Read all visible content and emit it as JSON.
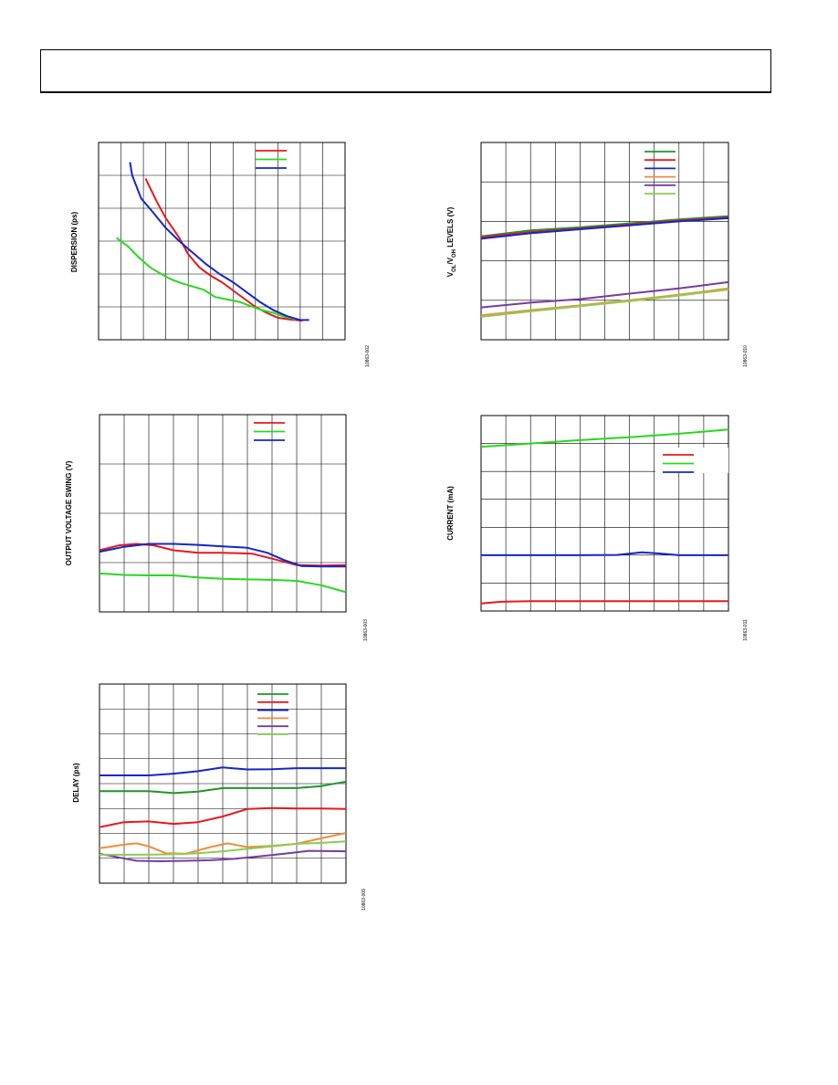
{
  "charts": [
    {
      "id": "dispersion",
      "type": "line",
      "ylabel": "DISPERSION (ps)",
      "figure_id": "10863-002",
      "grid": true,
      "grid_cols": 11,
      "grid_rows": 6,
      "legend": "top-right",
      "colors": [
        "#e8181e",
        "#28d81e",
        "#1426c8"
      ],
      "x_range": [
        0,
        11
      ],
      "y_range": [
        0,
        6
      ],
      "series": [
        {
          "color": "#e8181e",
          "points": [
            [
              2.1,
              4.9
            ],
            [
              2.6,
              4.2
            ],
            [
              3.0,
              3.7
            ],
            [
              3.6,
              3.1
            ],
            [
              4.0,
              2.6
            ],
            [
              4.5,
              2.2
            ],
            [
              5.0,
              1.95
            ],
            [
              5.5,
              1.75
            ],
            [
              6.0,
              1.5
            ],
            [
              6.5,
              1.25
            ],
            [
              7.0,
              1.0
            ],
            [
              7.5,
              0.82
            ],
            [
              8.0,
              0.67
            ],
            [
              8.5,
              0.62
            ],
            [
              9.1,
              0.58
            ]
          ]
        },
        {
          "color": "#28d81e",
          "points": [
            [
              0.8,
              3.1
            ],
            [
              1.3,
              2.85
            ],
            [
              1.8,
              2.5
            ],
            [
              2.3,
              2.2
            ],
            [
              2.8,
              2.0
            ],
            [
              3.2,
              1.85
            ],
            [
              3.7,
              1.72
            ],
            [
              4.2,
              1.62
            ],
            [
              4.7,
              1.52
            ],
            [
              5.2,
              1.3
            ],
            [
              5.8,
              1.22
            ],
            [
              6.3,
              1.15
            ],
            [
              6.8,
              1.02
            ],
            [
              7.3,
              0.9
            ],
            [
              7.8,
              0.82
            ],
            [
              8.3,
              0.7
            ],
            [
              8.8,
              0.62
            ]
          ]
        },
        {
          "color": "#1426c8",
          "points": [
            [
              1.4,
              5.4
            ],
            [
              1.5,
              5.0
            ],
            [
              1.9,
              4.3
            ],
            [
              2.4,
              3.9
            ],
            [
              3.0,
              3.4
            ],
            [
              3.6,
              3.0
            ],
            [
              4.2,
              2.65
            ],
            [
              4.8,
              2.3
            ],
            [
              5.4,
              2.0
            ],
            [
              6.0,
              1.75
            ],
            [
              6.6,
              1.45
            ],
            [
              7.2,
              1.15
            ],
            [
              7.8,
              0.9
            ],
            [
              8.4,
              0.72
            ],
            [
              9.0,
              0.6
            ],
            [
              9.4,
              0.6
            ]
          ]
        }
      ]
    },
    {
      "id": "vol-voh-levels",
      "type": "line",
      "ylabel": "V",
      "ylabel_parts": {
        "sub1": "OL",
        "mid": "/V",
        "sub2": "OH",
        "tail": " LEVELS (V)"
      },
      "figure_id": "10863-010",
      "grid": true,
      "grid_cols": 10,
      "grid_rows": 5,
      "legend": "top-right",
      "colors": [
        "#1e9628",
        "#e8181e",
        "#1426c8",
        "#f08c3c",
        "#783ca0",
        "#8ccc50"
      ],
      "x_range": [
        0,
        10
      ],
      "y_range": [
        0,
        5
      ],
      "series": [
        {
          "color": "#1e9628",
          "points": [
            [
              0,
              2.62
            ],
            [
              2,
              2.77
            ],
            [
              4,
              2.85
            ],
            [
              6,
              2.95
            ],
            [
              8,
              3.05
            ],
            [
              10,
              3.13
            ]
          ]
        },
        {
          "color": "#e8181e",
          "points": [
            [
              0,
              2.6
            ],
            [
              2,
              2.73
            ],
            [
              4,
              2.82
            ],
            [
              6,
              2.92
            ],
            [
              8,
              3.02
            ],
            [
              10,
              3.1
            ]
          ]
        },
        {
          "color": "#1426c8",
          "points": [
            [
              0,
              2.56
            ],
            [
              2,
              2.7
            ],
            [
              4,
              2.8
            ],
            [
              6,
              2.9
            ],
            [
              8,
              3.0
            ],
            [
              10,
              3.08
            ]
          ]
        },
        {
          "color": "#f08c3c",
          "points": [
            [
              0,
              0.62
            ],
            [
              2,
              0.75
            ],
            [
              4,
              0.87
            ],
            [
              6,
              1.0
            ],
            [
              8,
              1.14
            ],
            [
              10,
              1.3
            ]
          ]
        },
        {
          "color": "#783ca0",
          "points": [
            [
              0,
              0.82
            ],
            [
              2,
              0.94
            ],
            [
              4,
              1.03
            ],
            [
              6,
              1.17
            ],
            [
              8,
              1.3
            ],
            [
              10,
              1.46
            ]
          ]
        },
        {
          "color": "#8ccc50",
          "points": [
            [
              0,
              0.58
            ],
            [
              2,
              0.72
            ],
            [
              4,
              0.85
            ],
            [
              6,
              0.98
            ],
            [
              8,
              1.12
            ],
            [
              10,
              1.27
            ]
          ]
        }
      ]
    },
    {
      "id": "output-voltage-swing",
      "type": "line",
      "ylabel": "OUTPUT VOLTAGE SWING (V)",
      "figure_id": "10863-003",
      "grid": true,
      "grid_cols": 10,
      "grid_rows": 4,
      "legend": "top-right",
      "colors": [
        "#e8181e",
        "#28d81e",
        "#1426c8"
      ],
      "x_range": [
        0,
        10
      ],
      "y_range": [
        0,
        4
      ],
      "series": [
        {
          "color": "#e8181e",
          "points": [
            [
              0,
              1.25
            ],
            [
              0.8,
              1.35
            ],
            [
              1.5,
              1.38
            ],
            [
              2.2,
              1.35
            ],
            [
              3.0,
              1.25
            ],
            [
              4.0,
              1.2
            ],
            [
              5.0,
              1.2
            ],
            [
              6.2,
              1.18
            ],
            [
              7.0,
              1.08
            ],
            [
              8.0,
              0.95
            ],
            [
              9.0,
              0.94
            ],
            [
              10,
              0.95
            ]
          ]
        },
        {
          "color": "#28d81e",
          "points": [
            [
              0,
              0.78
            ],
            [
              1,
              0.75
            ],
            [
              2,
              0.74
            ],
            [
              3,
              0.74
            ],
            [
              4,
              0.7
            ],
            [
              5,
              0.67
            ],
            [
              6,
              0.66
            ],
            [
              7,
              0.65
            ],
            [
              8,
              0.63
            ],
            [
              9,
              0.54
            ],
            [
              10,
              0.4
            ]
          ]
        },
        {
          "color": "#1426c8",
          "points": [
            [
              0,
              1.22
            ],
            [
              1,
              1.32
            ],
            [
              2,
              1.38
            ],
            [
              3,
              1.38
            ],
            [
              4,
              1.36
            ],
            [
              5,
              1.33
            ],
            [
              6,
              1.3
            ],
            [
              6.8,
              1.2
            ],
            [
              7.5,
              1.05
            ],
            [
              8.2,
              0.93
            ],
            [
              9,
              0.92
            ],
            [
              10,
              0.92
            ]
          ]
        }
      ]
    },
    {
      "id": "current",
      "type": "line",
      "ylabel": "CURRENT (mA)",
      "figure_id": "10863-011",
      "grid": true,
      "grid_cols": 10,
      "grid_rows": 7,
      "legend": "top-right",
      "colors": [
        "#e8181e",
        "#28d81e",
        "#1426c8"
      ],
      "x_range": [
        0,
        10
      ],
      "y_range": [
        0,
        7
      ],
      "series": [
        {
          "color": "#e8181e",
          "points": [
            [
              0,
              0.27
            ],
            [
              0.8,
              0.33
            ],
            [
              2,
              0.35
            ],
            [
              4,
              0.35
            ],
            [
              6,
              0.35
            ],
            [
              8,
              0.35
            ],
            [
              10,
              0.35
            ]
          ]
        },
        {
          "color": "#28d81e",
          "points": [
            [
              0,
              5.88
            ],
            [
              2,
              6.0
            ],
            [
              4,
              6.12
            ],
            [
              6,
              6.22
            ],
            [
              8,
              6.35
            ],
            [
              10,
              6.5
            ]
          ]
        },
        {
          "color": "#1426c8",
          "points": [
            [
              0,
              2.0
            ],
            [
              2,
              2.0
            ],
            [
              4,
              2.0
            ],
            [
              5.5,
              2.01
            ],
            [
              6.5,
              2.1
            ],
            [
              7.2,
              2.06
            ],
            [
              8,
              2.0
            ],
            [
              10,
              2.0
            ]
          ]
        }
      ]
    },
    {
      "id": "delay",
      "type": "line",
      "ylabel": "DELAY (ps)",
      "figure_id": "10863-009",
      "grid": true,
      "grid_cols": 10,
      "grid_rows": 8,
      "legend": "top-right",
      "colors": [
        "#1e9628",
        "#e8181e",
        "#1426c8",
        "#f08c3c",
        "#783ca0",
        "#8ccc50"
      ],
      "x_range": [
        0,
        10
      ],
      "y_range": [
        0,
        8
      ],
      "series": [
        {
          "color": "#1e9628",
          "points": [
            [
              0,
              3.7
            ],
            [
              1,
              3.7
            ],
            [
              2,
              3.7
            ],
            [
              3,
              3.62
            ],
            [
              4,
              3.68
            ],
            [
              5,
              3.82
            ],
            [
              6,
              3.82
            ],
            [
              7,
              3.82
            ],
            [
              8,
              3.82
            ],
            [
              9,
              3.9
            ],
            [
              10,
              4.08
            ]
          ]
        },
        {
          "color": "#e8181e",
          "points": [
            [
              0,
              2.25
            ],
            [
              1,
              2.45
            ],
            [
              2,
              2.48
            ],
            [
              3,
              2.38
            ],
            [
              4,
              2.45
            ],
            [
              5,
              2.68
            ],
            [
              6,
              2.98
            ],
            [
              7,
              3.02
            ],
            [
              8,
              3.0
            ],
            [
              9,
              3.0
            ],
            [
              10,
              2.98
            ]
          ]
        },
        {
          "color": "#1426c8",
          "points": [
            [
              0,
              4.33
            ],
            [
              1,
              4.33
            ],
            [
              2,
              4.33
            ],
            [
              3,
              4.4
            ],
            [
              4,
              4.5
            ],
            [
              5,
              4.65
            ],
            [
              6,
              4.57
            ],
            [
              7,
              4.58
            ],
            [
              8,
              4.62
            ],
            [
              9,
              4.62
            ],
            [
              10,
              4.62
            ]
          ]
        },
        {
          "color": "#f08c3c",
          "points": [
            [
              0,
              1.4
            ],
            [
              1,
              1.55
            ],
            [
              1.5,
              1.6
            ],
            [
              2,
              1.48
            ],
            [
              2.7,
              1.2
            ],
            [
              3.5,
              1.18
            ],
            [
              4.5,
              1.45
            ],
            [
              5.2,
              1.6
            ],
            [
              6,
              1.45
            ],
            [
              7,
              1.5
            ],
            [
              8,
              1.58
            ],
            [
              9,
              1.8
            ],
            [
              10,
              2.02
            ]
          ]
        },
        {
          "color": "#783ca0",
          "points": [
            [
              0,
              1.18
            ],
            [
              1.5,
              0.9
            ],
            [
              2.5,
              0.88
            ],
            [
              3.5,
              0.9
            ],
            [
              4.5,
              0.92
            ],
            [
              5.5,
              0.98
            ],
            [
              6.5,
              1.08
            ],
            [
              7.5,
              1.18
            ],
            [
              8.5,
              1.3
            ],
            [
              10,
              1.28
            ]
          ]
        },
        {
          "color": "#8ccc50",
          "points": [
            [
              0,
              1.14
            ],
            [
              1,
              1.14
            ],
            [
              2,
              1.15
            ],
            [
              3,
              1.16
            ],
            [
              4,
              1.2
            ],
            [
              5,
              1.28
            ],
            [
              6,
              1.38
            ],
            [
              7,
              1.48
            ],
            [
              8,
              1.58
            ],
            [
              9,
              1.62
            ],
            [
              10,
              1.68
            ]
          ]
        }
      ]
    }
  ]
}
